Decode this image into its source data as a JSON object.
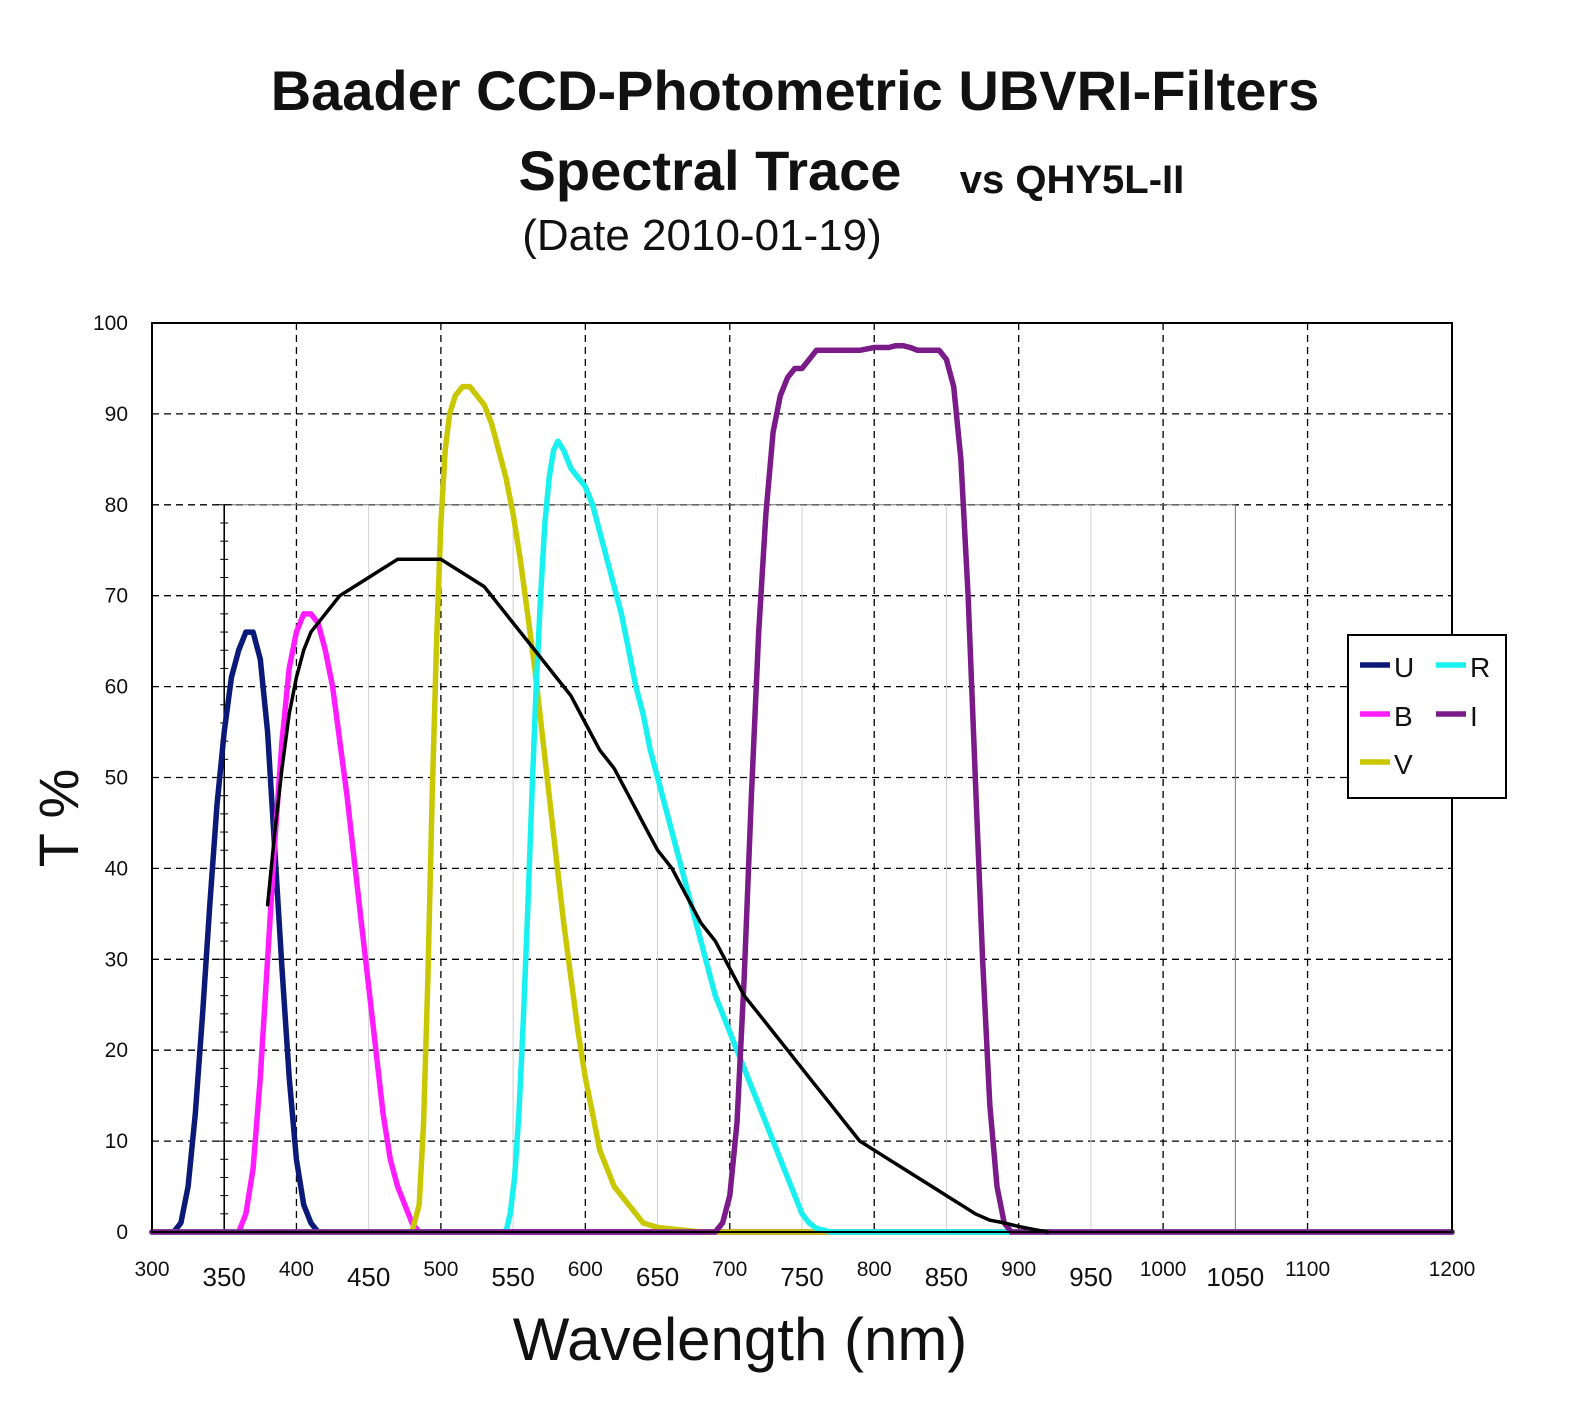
{
  "chart_data": {
    "type": "line",
    "title": "Baader CCD-Photometric UBVRI-Filters",
    "subtitle": "Spectral Trace",
    "subtitle_note": "vs QHY5L-II",
    "date_note": "(Date 2010-01-19)",
    "xlabel": "Wavelength (nm)",
    "ylabel": "T %",
    "xlim": [
      300,
      1200
    ],
    "ylim": [
      0,
      100
    ],
    "grid": true,
    "legend_position": "right",
    "x_ticks_major": [
      "300",
      "400",
      "500",
      "600",
      "700",
      "800",
      "900",
      "1000",
      "1100",
      "1200"
    ],
    "x_ticks_overlay": [
      "350",
      "450",
      "550",
      "650",
      "750",
      "850",
      "950",
      "1050"
    ],
    "y_ticks": [
      "0",
      "10",
      "20",
      "30",
      "40",
      "50",
      "60",
      "70",
      "80",
      "90",
      "100"
    ],
    "series": [
      {
        "name": "U",
        "color": "#0b1a78",
        "points": [
          [
            300,
            0
          ],
          [
            315,
            0
          ],
          [
            320,
            1
          ],
          [
            325,
            5
          ],
          [
            330,
            13
          ],
          [
            335,
            24
          ],
          [
            340,
            36
          ],
          [
            345,
            47
          ],
          [
            350,
            55
          ],
          [
            355,
            61
          ],
          [
            360,
            64
          ],
          [
            365,
            66
          ],
          [
            370,
            66
          ],
          [
            375,
            63
          ],
          [
            380,
            55
          ],
          [
            385,
            42
          ],
          [
            390,
            29
          ],
          [
            395,
            17
          ],
          [
            400,
            8
          ],
          [
            405,
            3
          ],
          [
            410,
            1
          ],
          [
            415,
            0
          ],
          [
            1200,
            0
          ]
        ]
      },
      {
        "name": "B",
        "color": "#ff1dff",
        "points": [
          [
            300,
            0
          ],
          [
            360,
            0
          ],
          [
            365,
            2
          ],
          [
            370,
            7
          ],
          [
            375,
            17
          ],
          [
            380,
            30
          ],
          [
            385,
            43
          ],
          [
            390,
            54
          ],
          [
            395,
            62
          ],
          [
            400,
            66
          ],
          [
            405,
            68
          ],
          [
            410,
            68
          ],
          [
            415,
            67
          ],
          [
            420,
            64
          ],
          [
            425,
            60
          ],
          [
            430,
            54
          ],
          [
            435,
            48
          ],
          [
            440,
            41
          ],
          [
            445,
            34
          ],
          [
            450,
            27
          ],
          [
            455,
            20
          ],
          [
            460,
            13
          ],
          [
            465,
            8
          ],
          [
            470,
            5
          ],
          [
            475,
            3
          ],
          [
            480,
            1
          ],
          [
            485,
            0
          ],
          [
            1200,
            0
          ]
        ]
      },
      {
        "name": "V",
        "color": "#c9c800",
        "points": [
          [
            300,
            0
          ],
          [
            480,
            0
          ],
          [
            485,
            3
          ],
          [
            488,
            12
          ],
          [
            491,
            28
          ],
          [
            494,
            48
          ],
          [
            497,
            65
          ],
          [
            500,
            78
          ],
          [
            503,
            86
          ],
          [
            506,
            90
          ],
          [
            510,
            92
          ],
          [
            515,
            93
          ],
          [
            520,
            93
          ],
          [
            525,
            92
          ],
          [
            530,
            91
          ],
          [
            535,
            89
          ],
          [
            540,
            86
          ],
          [
            545,
            83
          ],
          [
            550,
            79
          ],
          [
            555,
            74
          ],
          [
            560,
            68
          ],
          [
            565,
            62
          ],
          [
            570,
            55
          ],
          [
            575,
            48
          ],
          [
            580,
            41
          ],
          [
            585,
            34
          ],
          [
            590,
            28
          ],
          [
            595,
            22
          ],
          [
            600,
            17
          ],
          [
            605,
            13
          ],
          [
            610,
            9
          ],
          [
            615,
            7
          ],
          [
            620,
            5
          ],
          [
            625,
            4
          ],
          [
            630,
            3
          ],
          [
            635,
            2
          ],
          [
            640,
            1
          ],
          [
            650,
            0.5
          ],
          [
            680,
            0
          ],
          [
            1200,
            0
          ]
        ]
      },
      {
        "name": "R",
        "color": "#19f0f0",
        "points": [
          [
            300,
            0
          ],
          [
            545,
            0
          ],
          [
            548,
            2
          ],
          [
            551,
            6
          ],
          [
            554,
            13
          ],
          [
            557,
            23
          ],
          [
            560,
            35
          ],
          [
            563,
            48
          ],
          [
            566,
            60
          ],
          [
            569,
            70
          ],
          [
            572,
            78
          ],
          [
            575,
            83
          ],
          [
            578,
            86
          ],
          [
            581,
            87
          ],
          [
            585,
            86
          ],
          [
            590,
            84
          ],
          [
            595,
            83
          ],
          [
            600,
            82
          ],
          [
            605,
            80
          ],
          [
            610,
            77
          ],
          [
            615,
            74
          ],
          [
            620,
            71
          ],
          [
            625,
            68
          ],
          [
            630,
            64
          ],
          [
            635,
            60
          ],
          [
            640,
            57
          ],
          [
            645,
            53
          ],
          [
            650,
            50
          ],
          [
            655,
            47
          ],
          [
            660,
            44
          ],
          [
            665,
            41
          ],
          [
            670,
            38
          ],
          [
            675,
            35
          ],
          [
            680,
            32
          ],
          [
            685,
            29
          ],
          [
            690,
            26
          ],
          [
            695,
            24
          ],
          [
            700,
            22
          ],
          [
            705,
            20
          ],
          [
            710,
            18
          ],
          [
            715,
            16
          ],
          [
            720,
            14
          ],
          [
            725,
            12
          ],
          [
            730,
            10
          ],
          [
            735,
            8
          ],
          [
            740,
            6
          ],
          [
            745,
            4
          ],
          [
            750,
            2
          ],
          [
            755,
            1
          ],
          [
            760,
            0.4
          ],
          [
            770,
            0
          ],
          [
            1200,
            0
          ]
        ]
      },
      {
        "name": "I",
        "color": "#7b1b8a",
        "points": [
          [
            300,
            0
          ],
          [
            690,
            0
          ],
          [
            695,
            1
          ],
          [
            700,
            4
          ],
          [
            705,
            12
          ],
          [
            710,
            28
          ],
          [
            715,
            48
          ],
          [
            720,
            66
          ],
          [
            725,
            79
          ],
          [
            730,
            88
          ],
          [
            735,
            92
          ],
          [
            740,
            94
          ],
          [
            745,
            95
          ],
          [
            750,
            95
          ],
          [
            755,
            96
          ],
          [
            760,
            97
          ],
          [
            765,
            97
          ],
          [
            770,
            97
          ],
          [
            780,
            97
          ],
          [
            790,
            97
          ],
          [
            800,
            97.3
          ],
          [
            810,
            97.3
          ],
          [
            815,
            97.5
          ],
          [
            820,
            97.5
          ],
          [
            825,
            97.3
          ],
          [
            830,
            97
          ],
          [
            835,
            97
          ],
          [
            840,
            97
          ],
          [
            845,
            97
          ],
          [
            850,
            96
          ],
          [
            855,
            93
          ],
          [
            860,
            85
          ],
          [
            865,
            70
          ],
          [
            870,
            50
          ],
          [
            875,
            30
          ],
          [
            880,
            14
          ],
          [
            885,
            5
          ],
          [
            890,
            1
          ],
          [
            895,
            0
          ],
          [
            1200,
            0
          ]
        ]
      },
      {
        "name": "",
        "color": "#000000",
        "points": [
          [
            380,
            36
          ],
          [
            385,
            44
          ],
          [
            390,
            51
          ],
          [
            395,
            57
          ],
          [
            400,
            61
          ],
          [
            405,
            64
          ],
          [
            410,
            66
          ],
          [
            420,
            68
          ],
          [
            430,
            70
          ],
          [
            440,
            71
          ],
          [
            450,
            72
          ],
          [
            460,
            73
          ],
          [
            470,
            74
          ],
          [
            480,
            74
          ],
          [
            490,
            74
          ],
          [
            500,
            74
          ],
          [
            510,
            73
          ],
          [
            520,
            72
          ],
          [
            530,
            71
          ],
          [
            540,
            69
          ],
          [
            550,
            67
          ],
          [
            560,
            65
          ],
          [
            570,
            63
          ],
          [
            580,
            61
          ],
          [
            590,
            59
          ],
          [
            600,
            56
          ],
          [
            610,
            53
          ],
          [
            620,
            51
          ],
          [
            630,
            48
          ],
          [
            640,
            45
          ],
          [
            650,
            42
          ],
          [
            660,
            40
          ],
          [
            670,
            37
          ],
          [
            680,
            34
          ],
          [
            690,
            32
          ],
          [
            700,
            29
          ],
          [
            710,
            26
          ],
          [
            720,
            24
          ],
          [
            730,
            22
          ],
          [
            740,
            20
          ],
          [
            750,
            18
          ],
          [
            760,
            16
          ],
          [
            770,
            14
          ],
          [
            780,
            12
          ],
          [
            790,
            10
          ],
          [
            800,
            9
          ],
          [
            810,
            8
          ],
          [
            820,
            7
          ],
          [
            830,
            6
          ],
          [
            840,
            5
          ],
          [
            850,
            4
          ],
          [
            860,
            3
          ],
          [
            870,
            2
          ],
          [
            880,
            1.3
          ],
          [
            890,
            1
          ],
          [
            900,
            0.6
          ],
          [
            910,
            0.3
          ],
          [
            920,
            0
          ]
        ]
      }
    ],
    "legend": [
      {
        "label": "U",
        "color": "#0b1a78"
      },
      {
        "label": "R",
        "color": "#19f0f0"
      },
      {
        "label": "B",
        "color": "#ff1dff"
      },
      {
        "label": "I",
        "color": "#7b1b8a"
      },
      {
        "label": "V",
        "color": "#c9c800"
      }
    ]
  }
}
